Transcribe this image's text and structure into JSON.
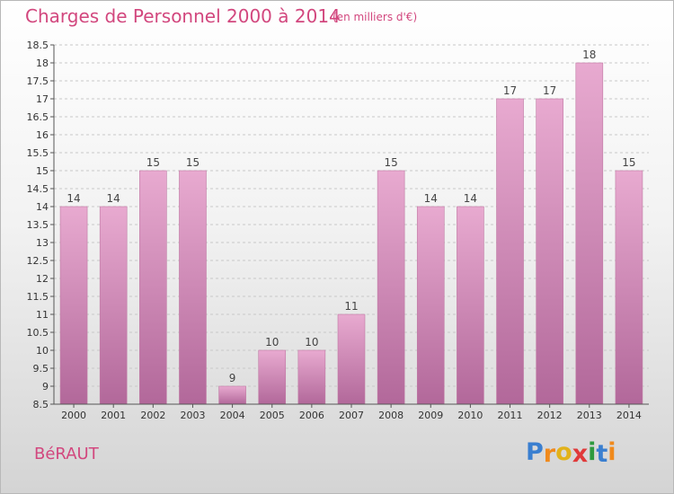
{
  "title": "Charges de Personnel 2000 à 2014",
  "subtitle": "(en milliers d'€)",
  "commune": "BéRAUT",
  "logo": {
    "letters": [
      "P",
      "r",
      "o",
      "x",
      "i",
      "t",
      "i"
    ],
    "colors": [
      "#3a7fd0",
      "#f08a1c",
      "#e2b21a",
      "#e03a3a",
      "#2e9a3e",
      "#3a7fd0",
      "#f08a1c"
    ]
  },
  "colors": {
    "bar": "#dc9ac0",
    "bar_dark": "#b2689a",
    "text_accent": "#d2477e"
  },
  "chart_data": {
    "type": "bar",
    "categories": [
      "2000",
      "2001",
      "2002",
      "2003",
      "2004",
      "2005",
      "2006",
      "2007",
      "2008",
      "2009",
      "2010",
      "2011",
      "2012",
      "2013",
      "2014"
    ],
    "values": [
      14,
      14,
      15,
      15,
      9,
      10,
      10,
      11,
      15,
      14,
      14,
      17,
      17,
      18,
      15
    ],
    "ylim": [
      8.5,
      18.5
    ],
    "yticks": [
      "8.5",
      "9",
      "9.5",
      "10",
      "10.5",
      "11",
      "11.5",
      "12",
      "12.5",
      "13",
      "13.5",
      "14",
      "14.5",
      "15",
      "15.5",
      "16",
      "16.5",
      "17",
      "17.5",
      "18",
      "18.5"
    ],
    "grid": true
  }
}
